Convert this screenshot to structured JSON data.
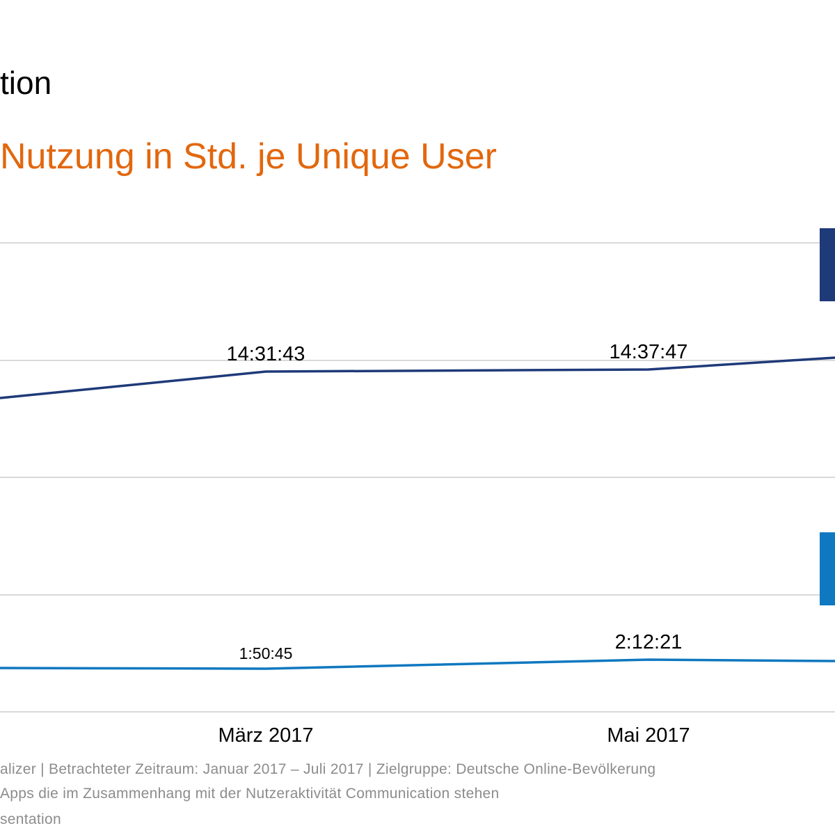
{
  "header": {
    "title": "tion",
    "subtitle": "Nutzung in Std. je Unique User"
  },
  "colors": {
    "subtitle": "#e2670e",
    "series_total": "#1f3a79",
    "series_app": "#0f78c0",
    "grid": "#d9d9d9"
  },
  "chart_data": {
    "type": "line",
    "categories": [
      "März 2017",
      "Mai 2017"
    ],
    "grid": true,
    "series": [
      {
        "values": [
          "14:31:43",
          "14:37:47"
        ],
        "hours": [
          14.529,
          14.63
        ]
      },
      {
        "values": [
          "1:50:45",
          "2:12:21"
        ],
        "hours": [
          1.846,
          2.206
        ]
      }
    ]
  },
  "footer": {
    "line1": "alizer | Betrachteter Zeitraum: Januar 2017 – Juli 2017 | Zielgruppe: Deutsche Online-Bevölkerung",
    "line2": "Apps die im Zusammenhang mit der Nutzeraktivität Communication stehen",
    "line3": "sentation"
  }
}
